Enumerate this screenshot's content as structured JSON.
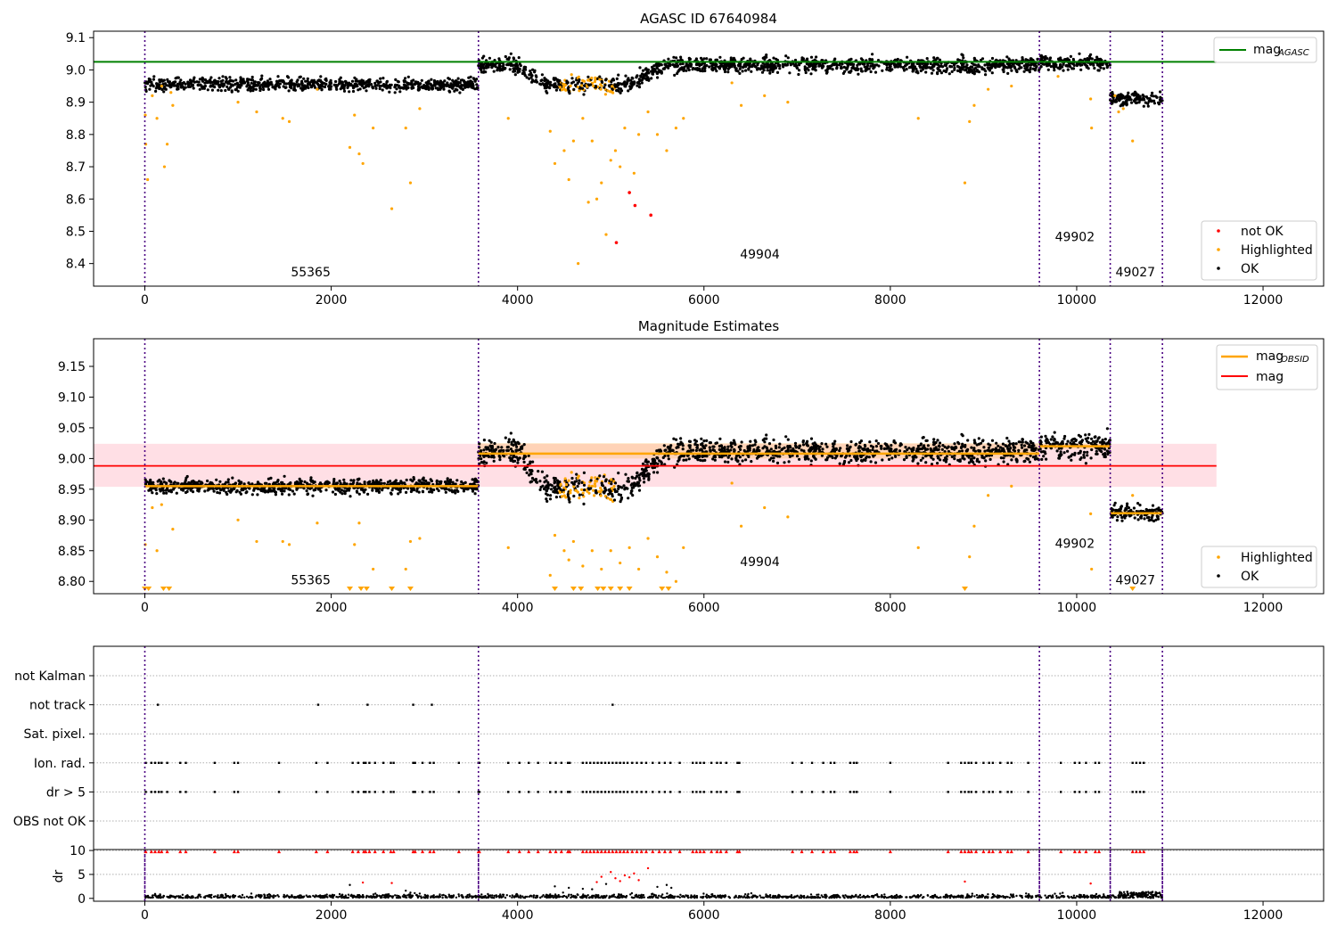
{
  "colors": {
    "ok": "#000000",
    "highlighted": "#ffa500",
    "not_ok": "#ff0000",
    "agasc_line": "#008000",
    "mag_line": "#ff0000",
    "mag_band": "#ffc0cb",
    "obsid_line": "#ffa500",
    "obs_boundary": "#4b0082",
    "grid": "#b0b0b0"
  },
  "chart_data": [
    {
      "id": "agasc",
      "type": "scatter",
      "title": "AGASC ID 67640984",
      "xlim": [
        -550,
        12650
      ],
      "ylim": [
        8.33,
        9.12
      ],
      "xticks": [
        0,
        2000,
        4000,
        6000,
        8000,
        10000,
        12000
      ],
      "xtick_labels": [
        "0",
        "2000",
        "4000",
        "6000",
        "8000",
        "10000",
        "12000"
      ],
      "yticks": [
        8.4,
        8.5,
        8.6,
        8.7,
        8.8,
        8.9,
        9.0,
        9.1
      ],
      "ytick_labels": [
        "8.4",
        "8.5",
        "8.6",
        "8.7",
        "8.8",
        "8.9",
        "9.0",
        "9.1"
      ],
      "hlines": [
        {
          "name": "mag",
          "subscript": "AGASC",
          "y": 9.025,
          "x": [
            -550,
            11500
          ],
          "color": "#008000"
        }
      ],
      "legend_upper": {
        "position": "top-right",
        "entries": [
          {
            "label": "mag",
            "subscript": "AGASC",
            "color": "#008000",
            "marker": "line"
          }
        ]
      },
      "legend_lower": {
        "position": "bottom-right",
        "entries": [
          {
            "label": "not OK",
            "color": "#ff0000",
            "marker": "dot"
          },
          {
            "label": "Highlighted",
            "color": "#ffa500",
            "marker": "dot"
          },
          {
            "label": "OK",
            "color": "#000000",
            "marker": "dot"
          }
        ]
      },
      "obs_boundaries": [
        0,
        3580,
        9600,
        10360,
        10920
      ],
      "obs_labels": [
        {
          "text": "55365",
          "x": 1780,
          "y": 8.36
        },
        {
          "text": "49904",
          "x": 6600,
          "y": 8.415
        },
        {
          "text": "49902",
          "x": 9980,
          "y": 8.47
        },
        {
          "text": "49027",
          "x": 10630,
          "y": 8.36
        }
      ],
      "segments": [
        {
          "x": [
            0,
            3580
          ],
          "mean": 8.955,
          "spread": 0.01,
          "dip": false
        },
        {
          "x": [
            3580,
            9600
          ],
          "mean": 9.015,
          "spread": 0.012,
          "dip": true,
          "dip_range": [
            4300,
            5200
          ],
          "dip_depth": 0.06
        },
        {
          "x": [
            9600,
            10360
          ],
          "mean": 9.022,
          "spread": 0.012,
          "dip": false
        },
        {
          "x": [
            10360,
            10920
          ],
          "mean": 8.91,
          "spread": 0.01,
          "dip": false
        }
      ],
      "highlighted_points": [
        [
          5,
          8.86
        ],
        [
          10,
          8.77
        ],
        [
          30,
          8.66
        ],
        [
          80,
          8.92
        ],
        [
          130,
          8.85
        ],
        [
          180,
          8.95
        ],
        [
          210,
          8.7
        ],
        [
          240,
          8.77
        ],
        [
          280,
          8.93
        ],
        [
          300,
          8.89
        ],
        [
          1000,
          8.9
        ],
        [
          1200,
          8.87
        ],
        [
          1480,
          8.85
        ],
        [
          1550,
          8.84
        ],
        [
          1850,
          8.94
        ],
        [
          2200,
          8.76
        ],
        [
          2250,
          8.86
        ],
        [
          2300,
          8.74
        ],
        [
          2340,
          8.71
        ],
        [
          2450,
          8.82
        ],
        [
          2650,
          8.57
        ],
        [
          2800,
          8.82
        ],
        [
          2850,
          8.65
        ],
        [
          2950,
          8.88
        ],
        [
          3900,
          8.85
        ],
        [
          4350,
          8.81
        ],
        [
          4400,
          8.71
        ],
        [
          4500,
          8.75
        ],
        [
          4550,
          8.66
        ],
        [
          4600,
          8.78
        ],
        [
          4650,
          8.4
        ],
        [
          4700,
          8.85
        ],
        [
          4760,
          8.59
        ],
        [
          4800,
          8.78
        ],
        [
          4850,
          8.6
        ],
        [
          4900,
          8.65
        ],
        [
          4950,
          8.49
        ],
        [
          5000,
          8.72
        ],
        [
          5050,
          8.75
        ],
        [
          5100,
          8.7
        ],
        [
          5150,
          8.82
        ],
        [
          5200,
          8.62
        ],
        [
          5250,
          8.68
        ],
        [
          5300,
          8.8
        ],
        [
          5400,
          8.87
        ],
        [
          5500,
          8.8
        ],
        [
          5600,
          8.75
        ],
        [
          5700,
          8.82
        ],
        [
          5780,
          8.85
        ],
        [
          6300,
          8.96
        ],
        [
          6400,
          8.89
        ],
        [
          6650,
          8.92
        ],
        [
          6900,
          8.9
        ],
        [
          8300,
          8.85
        ],
        [
          8800,
          8.65
        ],
        [
          8850,
          8.84
        ],
        [
          8900,
          8.89
        ],
        [
          9050,
          8.94
        ],
        [
          9300,
          8.95
        ],
        [
          9800,
          8.98
        ],
        [
          10150,
          8.91
        ],
        [
          10160,
          8.82
        ],
        [
          10410,
          8.92
        ],
        [
          10450,
          8.87
        ],
        [
          10500,
          8.88
        ],
        [
          10600,
          8.78
        ]
      ],
      "not_ok_points": [
        [
          5200,
          8.62
        ],
        [
          5260,
          8.58
        ],
        [
          5060,
          8.465
        ],
        [
          5430,
          8.55
        ]
      ]
    },
    {
      "id": "estimates",
      "type": "scatter",
      "title": "Magnitude Estimates",
      "xlim": [
        -550,
        12650
      ],
      "ylim": [
        8.78,
        9.195
      ],
      "xticks": [
        0,
        2000,
        4000,
        6000,
        8000,
        10000,
        12000
      ],
      "xtick_labels": [
        "0",
        "2000",
        "4000",
        "6000",
        "8000",
        "10000",
        "12000"
      ],
      "yticks": [
        8.8,
        8.85,
        8.9,
        8.95,
        9.0,
        9.05,
        9.1,
        9.15
      ],
      "ytick_labels": [
        "8.80",
        "8.85",
        "8.90",
        "8.95",
        "9.00",
        "9.05",
        "9.10",
        "9.15"
      ],
      "mag": {
        "name": "mag",
        "y": 8.988,
        "band": [
          8.954,
          9.024
        ],
        "x": [
          -550,
          11500
        ],
        "color": "#ff0000"
      },
      "obsid_means": [
        {
          "x": [
            0,
            3580
          ],
          "y": 8.955,
          "band": [
            8.95,
            8.96
          ]
        },
        {
          "x": [
            3580,
            9600
          ],
          "y": 9.008,
          "band": [
            9.0,
            9.025
          ]
        },
        {
          "x": [
            9600,
            10360
          ],
          "y": 9.02,
          "band": [
            9.015,
            9.025
          ]
        },
        {
          "x": [
            10360,
            10920
          ],
          "y": 8.911,
          "band": [
            8.906,
            8.916
          ]
        }
      ],
      "legend_upper": {
        "position": "top-right",
        "entries": [
          {
            "label": "mag",
            "subscript": "OBSID",
            "color": "#ffa500",
            "marker": "line"
          },
          {
            "label": "mag",
            "subscript": "",
            "color": "#ff0000",
            "marker": "line"
          }
        ]
      },
      "legend_lower": {
        "position": "bottom-right",
        "entries": [
          {
            "label": "Highlighted",
            "color": "#ffa500",
            "marker": "dot"
          },
          {
            "label": "OK",
            "color": "#000000",
            "marker": "dot"
          }
        ]
      },
      "obs_boundaries": [
        0,
        3580,
        9600,
        10360,
        10920
      ],
      "obs_labels": [
        {
          "text": "55365",
          "x": 1780,
          "y": 8.795
        },
        {
          "text": "49904",
          "x": 6600,
          "y": 8.825
        },
        {
          "text": "49902",
          "x": 9980,
          "y": 8.855
        },
        {
          "text": "49027",
          "x": 10630,
          "y": 8.795
        }
      ],
      "segments": [
        {
          "x": [
            0,
            3580
          ],
          "mean": 8.955,
          "spread": 0.006,
          "dip": false
        },
        {
          "x": [
            3580,
            9600
          ],
          "mean": 9.012,
          "spread": 0.01,
          "dip": true,
          "dip_range": [
            4300,
            5200
          ],
          "dip_depth": 0.06
        },
        {
          "x": [
            9600,
            10360
          ],
          "mean": 9.02,
          "spread": 0.01,
          "dip": false
        },
        {
          "x": [
            10360,
            10920
          ],
          "mean": 8.911,
          "spread": 0.006,
          "dip": false
        }
      ],
      "highlighted_points": [
        [
          5,
          8.86
        ],
        [
          80,
          8.92
        ],
        [
          130,
          8.85
        ],
        [
          180,
          8.925
        ],
        [
          300,
          8.885
        ],
        [
          1000,
          8.9
        ],
        [
          1200,
          8.865
        ],
        [
          1480,
          8.865
        ],
        [
          1550,
          8.86
        ],
        [
          1850,
          8.895
        ],
        [
          2250,
          8.86
        ],
        [
          2300,
          8.895
        ],
        [
          2450,
          8.82
        ],
        [
          2800,
          8.82
        ],
        [
          2850,
          8.865
        ],
        [
          2950,
          8.87
        ],
        [
          3900,
          8.855
        ],
        [
          4350,
          8.81
        ],
        [
          4400,
          8.875
        ],
        [
          4500,
          8.85
        ],
        [
          4550,
          8.835
        ],
        [
          4600,
          8.865
        ],
        [
          4700,
          8.825
        ],
        [
          4800,
          8.85
        ],
        [
          4900,
          8.82
        ],
        [
          5000,
          8.85
        ],
        [
          5100,
          8.83
        ],
        [
          5200,
          8.855
        ],
        [
          5300,
          8.82
        ],
        [
          5400,
          8.87
        ],
        [
          5500,
          8.84
        ],
        [
          5600,
          8.815
        ],
        [
          5700,
          8.8
        ],
        [
          5780,
          8.855
        ],
        [
          6300,
          8.96
        ],
        [
          6400,
          8.89
        ],
        [
          6650,
          8.92
        ],
        [
          6900,
          8.905
        ],
        [
          8300,
          8.855
        ],
        [
          8850,
          8.84
        ],
        [
          8900,
          8.89
        ],
        [
          9050,
          8.94
        ],
        [
          9300,
          8.955
        ],
        [
          10150,
          8.91
        ],
        [
          10160,
          8.82
        ],
        [
          10600,
          8.94
        ]
      ],
      "clipped_points": [
        0,
        40,
        200,
        260,
        2200,
        2320,
        2380,
        2650,
        2850,
        4400,
        4600,
        4680,
        4860,
        4920,
        5000,
        5100,
        5200,
        5550,
        5620,
        8800,
        10600
      ]
    },
    {
      "id": "flags",
      "type": "scatter",
      "xlim": [
        -550,
        12650
      ],
      "categories": [
        "OBS not OK",
        "dr > 5",
        "Ion. rad.",
        "Sat. pixel.",
        "not track",
        "not Kalman"
      ],
      "obs_boundaries": [
        0,
        3580,
        9600,
        10360,
        10920
      ],
      "not_track_x": [
        140,
        1860,
        2390,
        2880,
        3080,
        5020
      ],
      "flag_x": [
        10,
        70,
        110,
        150,
        180,
        240,
        380,
        440,
        750,
        960,
        1000,
        1440,
        1840,
        1960,
        2230,
        2290,
        2350,
        2370,
        2410,
        2470,
        2560,
        2640,
        2670,
        2880,
        2900,
        2980,
        3060,
        3100,
        3370,
        3580,
        3590,
        3900,
        4020,
        4120,
        4220,
        4350,
        4410,
        4470,
        4540,
        4560,
        4700,
        4740,
        4780,
        4820,
        4860,
        4900,
        4940,
        4980,
        5020,
        5060,
        5100,
        5140,
        5180,
        5230,
        5280,
        5330,
        5380,
        5450,
        5520,
        5580,
        5640,
        5740,
        5880,
        5920,
        5960,
        6000,
        6080,
        6140,
        6180,
        6240,
        6360,
        6380,
        6950,
        7050,
        7160,
        7280,
        7360,
        7400,
        7570,
        7610,
        7640,
        8000,
        8620,
        8760,
        8800,
        8840,
        8870,
        8920,
        9000,
        9060,
        9100,
        9180,
        9260,
        9300,
        9480,
        9830,
        9980,
        10030,
        10100,
        10200,
        10240,
        10600,
        10640,
        10680,
        10720
      ]
    },
    {
      "id": "dr",
      "type": "scatter",
      "ylabel": "dr",
      "xlim": [
        -550,
        12650
      ],
      "ylim": [
        -0.6,
        10.2
      ],
      "xticks": [
        0,
        2000,
        4000,
        6000,
        8000,
        10000,
        12000
      ],
      "xtick_labels": [
        "0",
        "2000",
        "4000",
        "6000",
        "8000",
        "10000",
        "12000"
      ],
      "yticks": [
        0,
        5,
        10
      ],
      "ytick_labels": [
        "0",
        "5",
        "10"
      ],
      "obs_boundaries": [
        0,
        3580,
        9600,
        10360,
        10920
      ],
      "dr_scatter": [
        [
          2200,
          2.8
        ],
        [
          2340,
          3.3
        ],
        [
          2650,
          3.2
        ],
        [
          2800,
          1.6
        ],
        [
          2850,
          1.2
        ],
        [
          2950,
          1.0
        ],
        [
          4400,
          2.5
        ],
        [
          4550,
          2.2
        ],
        [
          4700,
          2.0
        ],
        [
          4800,
          1.9
        ],
        [
          4850,
          3.4
        ],
        [
          4900,
          4.5
        ],
        [
          4950,
          3.0
        ],
        [
          5000,
          5.5
        ],
        [
          5050,
          4.2
        ],
        [
          5100,
          3.6
        ],
        [
          5150,
          4.8
        ],
        [
          5200,
          4.4
        ],
        [
          5250,
          5.2
        ],
        [
          5300,
          3.8
        ],
        [
          5400,
          6.3
        ],
        [
          5500,
          2.4
        ],
        [
          5600,
          2.8
        ],
        [
          5650,
          2.2
        ],
        [
          8800,
          3.5
        ],
        [
          10150,
          3.1
        ]
      ],
      "dr_clipped_x": [
        10,
        70,
        110,
        150,
        180,
        240,
        380,
        440,
        750,
        960,
        1000,
        1440,
        1840,
        1960,
        2230,
        2290,
        2350,
        2370,
        2410,
        2470,
        2560,
        2640,
        2670,
        2880,
        2900,
        2980,
        3060,
        3100,
        3370,
        3580,
        3590,
        3900,
        4020,
        4120,
        4220,
        4350,
        4410,
        4470,
        4540,
        4560,
        4700,
        4740,
        4780,
        4820,
        4860,
        4900,
        4940,
        4980,
        5020,
        5060,
        5100,
        5140,
        5180,
        5230,
        5280,
        5330,
        5380,
        5450,
        5520,
        5580,
        5640,
        5740,
        5880,
        5920,
        5960,
        6000,
        6080,
        6140,
        6180,
        6240,
        6360,
        6380,
        6950,
        7050,
        7160,
        7280,
        7360,
        7400,
        7570,
        7610,
        7640,
        8000,
        8620,
        8760,
        8800,
        8840,
        8870,
        8920,
        9000,
        9060,
        9100,
        9180,
        9260,
        9300,
        9480,
        9830,
        9980,
        10030,
        10100,
        10200,
        10240,
        10600,
        10640,
        10680,
        10720
      ]
    }
  ]
}
